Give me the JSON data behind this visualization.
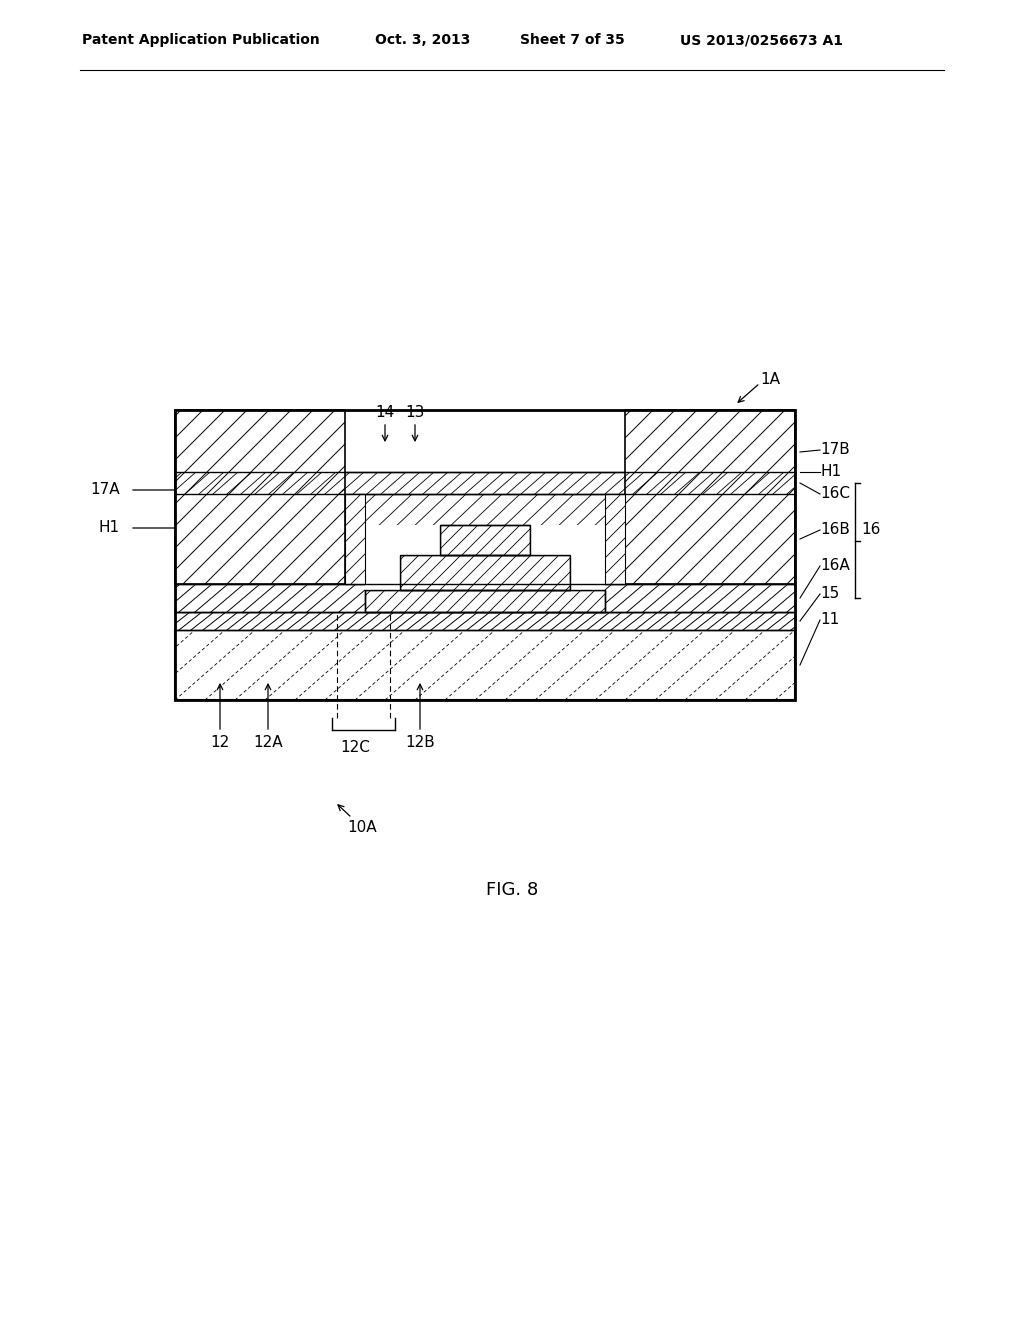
{
  "bg_color": "#ffffff",
  "header_text": "Patent Application Publication",
  "header_date": "Oct. 3, 2013",
  "header_sheet": "Sheet 7 of 35",
  "header_patent": "US 2013/0256673 A1",
  "fig_label": "FIG. 8",
  "page_width": 10.24,
  "page_height": 13.2,
  "dpi": 100
}
